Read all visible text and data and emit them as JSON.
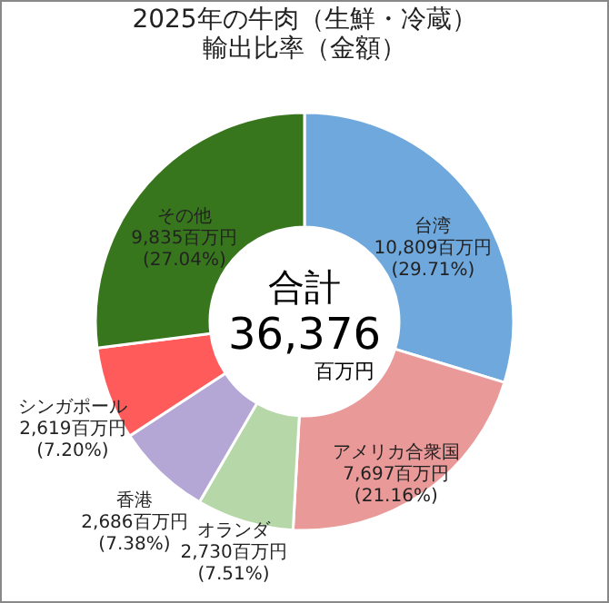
{
  "chart_data": {
    "type": "donut",
    "title": "2025年の牛肉（生鮮・冷蔵）輸出比率（金額）",
    "categories": [
      "台湾",
      "アメリカ合衆国",
      "オランダ",
      "香港",
      "シンガポール",
      "その他"
    ],
    "values": [
      10809,
      7697,
      2730,
      2686,
      2619,
      9835
    ],
    "colors": [
      "#6fa8dc",
      "#ea9999",
      "#b6d7a8",
      "#b4a7d6",
      "#ff5b5b",
      "#38761d"
    ],
    "value_labels": [
      "10,809百万円(29.71%)",
      "7,697百万円(21.16%)",
      "2,730百万円(7.51%)",
      "2,686百万円(7.38%)",
      "2,619百万円(7.20%)",
      "9,835百万円(27.04%)"
    ],
    "annotations": [
      "合計",
      "36,376",
      "百万円"
    ],
    "legend": false
  }
}
